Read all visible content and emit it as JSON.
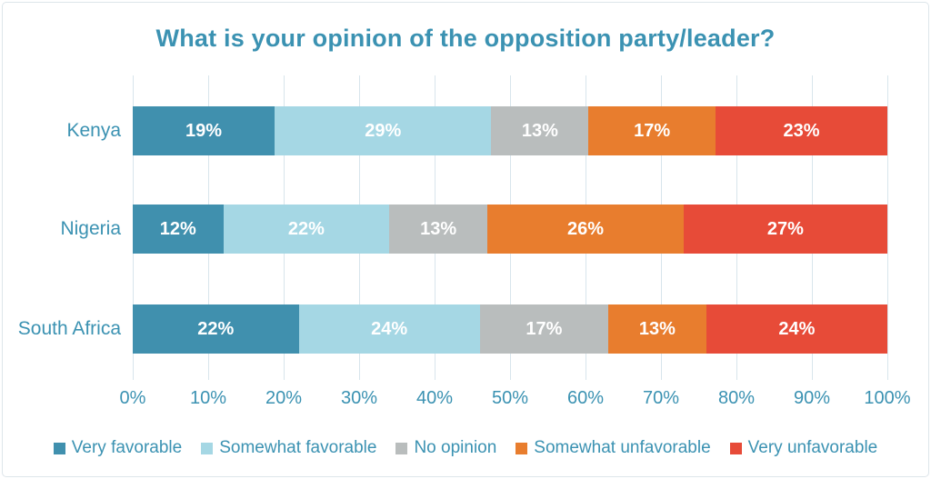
{
  "title": "What is your opinion of the opposition party/leader?",
  "chart_data": {
    "type": "bar",
    "orientation": "horizontal",
    "stacked": true,
    "title": "What is your opinion of the opposition party/leader?",
    "categories": [
      "Kenya",
      "Nigeria",
      "South Africa"
    ],
    "series": [
      {
        "name": "Very favorable",
        "color": "#4090ae",
        "values": [
          19,
          12,
          22
        ]
      },
      {
        "name": "Somewhat favorable",
        "color": "#a5d7e4",
        "values": [
          29,
          22,
          24
        ]
      },
      {
        "name": "No opinion",
        "color": "#b9bdbd",
        "values": [
          13,
          13,
          17
        ]
      },
      {
        "name": "Somewhat unfavorable",
        "color": "#e87d2e",
        "values": [
          17,
          26,
          13
        ]
      },
      {
        "name": "Very unfavorable",
        "color": "#e74b38",
        "values": [
          23,
          27,
          24
        ]
      }
    ],
    "value_suffix": "%",
    "xlabel": "",
    "ylabel": "",
    "xlim": [
      0,
      100
    ],
    "x_ticks": [
      "0%",
      "10%",
      "20%",
      "30%",
      "40%",
      "50%",
      "60%",
      "70%",
      "80%",
      "90%",
      "100%"
    ],
    "grid": true,
    "legend_position": "bottom"
  },
  "colors": {
    "title_text": "#3b92b2",
    "axis_text": "#3b92b2",
    "gridline": "#d8e5ec",
    "frame_border": "#dde5ea",
    "bar_label_text": "#ffffff"
  }
}
